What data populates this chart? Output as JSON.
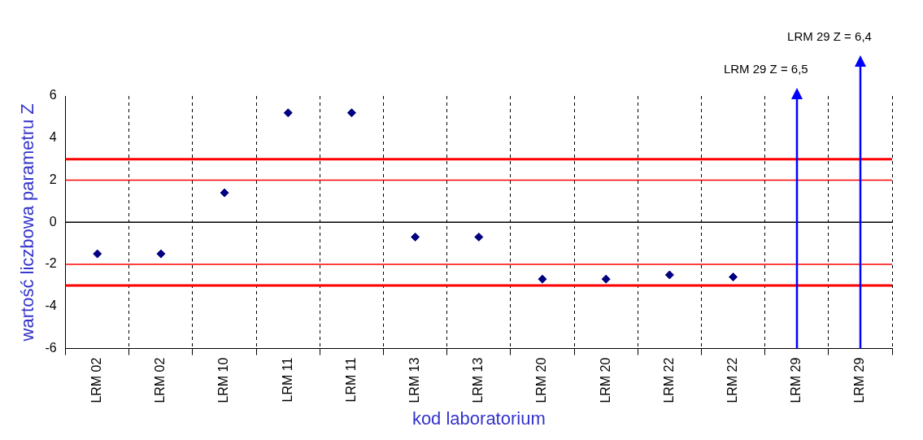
{
  "chart_data": {
    "type": "scatter",
    "xlabel": "kod laboratorium",
    "ylabel": "wartość liczbowa parametru Z",
    "categories": [
      "LRM 02",
      "LRM 02",
      "LRM 10",
      "LRM 11",
      "LRM 11",
      "LRM 13",
      "LRM 13",
      "LRM 20",
      "LRM 20",
      "LRM 22",
      "LRM 22",
      "LRM 29",
      "LRM 29"
    ],
    "series": [
      {
        "color": "#000080",
        "values": [
          -1.5,
          -1.5,
          1.4,
          5.2,
          5.2,
          -0.7,
          -0.7,
          -2.7,
          -2.7,
          -2.5,
          -2.6,
          null,
          null
        ]
      }
    ],
    "marker": "diamond",
    "ylim": [
      -6,
      6
    ],
    "yticks": [
      -6,
      -4,
      -2,
      0,
      2,
      4,
      6
    ],
    "grid": "x",
    "legend": false,
    "ref_lines": [
      {
        "axis": "y",
        "value": 3,
        "color": "#ff0000"
      },
      {
        "axis": "y",
        "value": 2,
        "color": "#ff0000"
      },
      {
        "axis": "y",
        "value": 0,
        "color": "#000000"
      },
      {
        "axis": "y",
        "value": -2,
        "color": "#ff0000"
      },
      {
        "axis": "y",
        "value": -3,
        "color": "#ff0000"
      }
    ],
    "annotations": [
      "LRM 29 Z = 6,5",
      "LRM 29 Z = 6,4"
    ]
  }
}
